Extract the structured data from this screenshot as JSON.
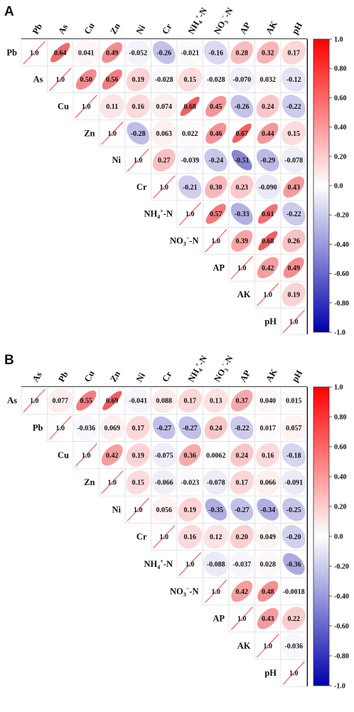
{
  "chart_data": [
    {
      "type": "heatmap",
      "panel": "A",
      "variables": [
        "Pb",
        "As",
        "Cu",
        "Zn",
        "Ni",
        "Cr",
        "NH4+-N",
        "NO3--N",
        "AP",
        "AK",
        "pH"
      ],
      "matrix": [
        [
          1.0,
          0.64,
          0.041,
          0.49,
          -0.052,
          -0.26,
          -0.021,
          -0.16,
          0.28,
          0.32,
          0.17
        ],
        [
          null,
          1.0,
          0.5,
          0.56,
          0.19,
          -0.028,
          0.15,
          -0.028,
          -0.07,
          0.032,
          -0.12
        ],
        [
          null,
          null,
          1.0,
          0.11,
          0.16,
          0.074,
          0.68,
          0.45,
          -0.26,
          0.24,
          -0.22
        ],
        [
          null,
          null,
          null,
          1.0,
          -0.28,
          0.063,
          0.022,
          0.46,
          0.67,
          0.44,
          0.15
        ],
        [
          null,
          null,
          null,
          null,
          1.0,
          0.27,
          -0.039,
          -0.24,
          -0.51,
          -0.29,
          -0.078
        ],
        [
          null,
          null,
          null,
          null,
          null,
          1.0,
          -0.21,
          0.3,
          0.23,
          -0.09,
          0.43
        ],
        [
          null,
          null,
          null,
          null,
          null,
          null,
          1.0,
          0.57,
          -0.33,
          0.61,
          -0.22
        ],
        [
          null,
          null,
          null,
          null,
          null,
          null,
          null,
          1.0,
          0.39,
          0.68,
          0.26
        ],
        [
          null,
          null,
          null,
          null,
          null,
          null,
          null,
          null,
          1.0,
          0.42,
          0.49
        ],
        [
          null,
          null,
          null,
          null,
          null,
          null,
          null,
          null,
          null,
          1.0,
          0.19
        ],
        [
          null,
          null,
          null,
          null,
          null,
          null,
          null,
          null,
          null,
          null,
          1.0
        ]
      ],
      "value_labels": [
        [
          "1.0",
          "0.64",
          "0.041",
          "0.49",
          "-0.052",
          "-0.26",
          "-0.021",
          "-0.16",
          "0.28",
          "0.32",
          "0.17"
        ],
        [
          null,
          "1.0",
          "0.50",
          "0.56",
          "0.19",
          "-0.028",
          "0.15",
          "-0.028",
          "-0.070",
          "0.032",
          "-0.12"
        ],
        [
          null,
          null,
          "1.0",
          "0.11",
          "0.16",
          "0.074",
          "0.68",
          "0.45",
          "-0.26",
          "0.24",
          "-0.22"
        ],
        [
          null,
          null,
          null,
          "1.0",
          "-0.28",
          "0.063",
          "0.022",
          "0.46",
          "0.67",
          "0.44",
          "0.15"
        ],
        [
          null,
          null,
          null,
          null,
          "1.0",
          "0.27",
          "-0.039",
          "-0.24",
          "-0.51",
          "-0.29",
          "-0.078"
        ],
        [
          null,
          null,
          null,
          null,
          null,
          "1.0",
          "-0.21",
          "0.30",
          "0.23",
          "-0.090",
          "0.43"
        ],
        [
          null,
          null,
          null,
          null,
          null,
          null,
          "1.0",
          "0.57",
          "-0.33",
          "0.61",
          "-0.22"
        ],
        [
          null,
          null,
          null,
          null,
          null,
          null,
          null,
          "1.0",
          "0.39",
          "0.68",
          "0.26"
        ],
        [
          null,
          null,
          null,
          null,
          null,
          null,
          null,
          null,
          "1.0",
          "0.42",
          "0.49"
        ],
        [
          null,
          null,
          null,
          null,
          null,
          null,
          null,
          null,
          null,
          "1.0",
          "0.19"
        ],
        [
          null,
          null,
          null,
          null,
          null,
          null,
          null,
          null,
          null,
          null,
          "1.0"
        ]
      ],
      "colorbar": {
        "ticks": [
          "1.0",
          "0.80",
          "0.60",
          "0.40",
          "0.20",
          "0.0",
          "-0.20",
          "-0.40",
          "-0.60",
          "-0.80",
          "-1.0"
        ],
        "range": [
          -1,
          1
        ]
      }
    },
    {
      "type": "heatmap",
      "panel": "B",
      "variables": [
        "As",
        "Pb",
        "Cu",
        "Zn",
        "Ni",
        "Cr",
        "NH4+-N",
        "NO3--N",
        "AP",
        "AK",
        "pH"
      ],
      "matrix": [
        [
          1.0,
          0.077,
          0.55,
          0.69,
          -0.041,
          0.088,
          0.17,
          0.13,
          0.37,
          0.04,
          0.015
        ],
        [
          null,
          1.0,
          -0.036,
          0.069,
          0.17,
          -0.27,
          -0.27,
          0.24,
          -0.22,
          0.017,
          0.057
        ],
        [
          null,
          null,
          1.0,
          0.42,
          0.19,
          -0.075,
          0.36,
          0.0062,
          0.24,
          0.16,
          -0.18
        ],
        [
          null,
          null,
          null,
          1.0,
          0.15,
          -0.066,
          -0.023,
          -0.078,
          0.17,
          0.066,
          -0.091
        ],
        [
          null,
          null,
          null,
          null,
          1.0,
          0.056,
          0.19,
          -0.35,
          -0.27,
          -0.34,
          -0.25
        ],
        [
          null,
          null,
          null,
          null,
          null,
          1.0,
          0.16,
          0.12,
          0.2,
          0.049,
          -0.2
        ],
        [
          null,
          null,
          null,
          null,
          null,
          null,
          1.0,
          -0.088,
          -0.037,
          0.028,
          -0.36
        ],
        [
          null,
          null,
          null,
          null,
          null,
          null,
          null,
          1.0,
          0.42,
          0.48,
          -0.0018
        ],
        [
          null,
          null,
          null,
          null,
          null,
          null,
          null,
          null,
          1.0,
          0.43,
          0.22
        ],
        [
          null,
          null,
          null,
          null,
          null,
          null,
          null,
          null,
          null,
          1.0,
          -0.036
        ],
        [
          null,
          null,
          null,
          null,
          null,
          null,
          null,
          null,
          null,
          null,
          1.0
        ]
      ],
      "value_labels": [
        [
          "1.0",
          "0.077",
          "0.55",
          "0.69",
          "-0.041",
          "0.088",
          "0.17",
          "0.13",
          "0.37",
          "0.040",
          "0.015"
        ],
        [
          null,
          "1.0",
          "-0.036",
          "0.069",
          "0.17",
          "-0.27",
          "-0.27",
          "0.24",
          "-0.22",
          "0.017",
          "0.057"
        ],
        [
          null,
          null,
          "1.0",
          "0.42",
          "0.19",
          "-0.075",
          "0.36",
          "0.0062",
          "0.24",
          "0.16",
          "-0.18"
        ],
        [
          null,
          null,
          null,
          "1.0",
          "0.15",
          "-0.066",
          "-0.023",
          "-0.078",
          "0.17",
          "0.066",
          "-0.091"
        ],
        [
          null,
          null,
          null,
          null,
          "1.0",
          "0.056",
          "0.19",
          "-0.35",
          "-0.27",
          "-0.34",
          "-0.25"
        ],
        [
          null,
          null,
          null,
          null,
          null,
          "1.0",
          "0.16",
          "0.12",
          "0.20",
          "0.049",
          "-0.20"
        ],
        [
          null,
          null,
          null,
          null,
          null,
          null,
          "1.0",
          "-0.088",
          "-0.037",
          "0.028",
          "-0.36"
        ],
        [
          null,
          null,
          null,
          null,
          null,
          null,
          null,
          "1.0",
          "0.42",
          "0.48",
          "-0.0018"
        ],
        [
          null,
          null,
          null,
          null,
          null,
          null,
          null,
          null,
          "1.0",
          "0.43",
          "0.22"
        ],
        [
          null,
          null,
          null,
          null,
          null,
          null,
          null,
          null,
          null,
          "1.0",
          "-0.036"
        ],
        [
          null,
          null,
          null,
          null,
          null,
          null,
          null,
          null,
          null,
          null,
          "1.0"
        ]
      ],
      "colorbar": {
        "ticks": [
          "1.0",
          "0.80",
          "0.60",
          "0.40",
          "0.20",
          "0.0",
          "-0.20",
          "-0.40",
          "-0.60",
          "-0.80",
          "-1.0"
        ],
        "range": [
          -1,
          1
        ]
      }
    }
  ],
  "colors": {
    "positive": "#e8151b",
    "neutral": "#ffffff",
    "negative": "#1a14a8"
  }
}
